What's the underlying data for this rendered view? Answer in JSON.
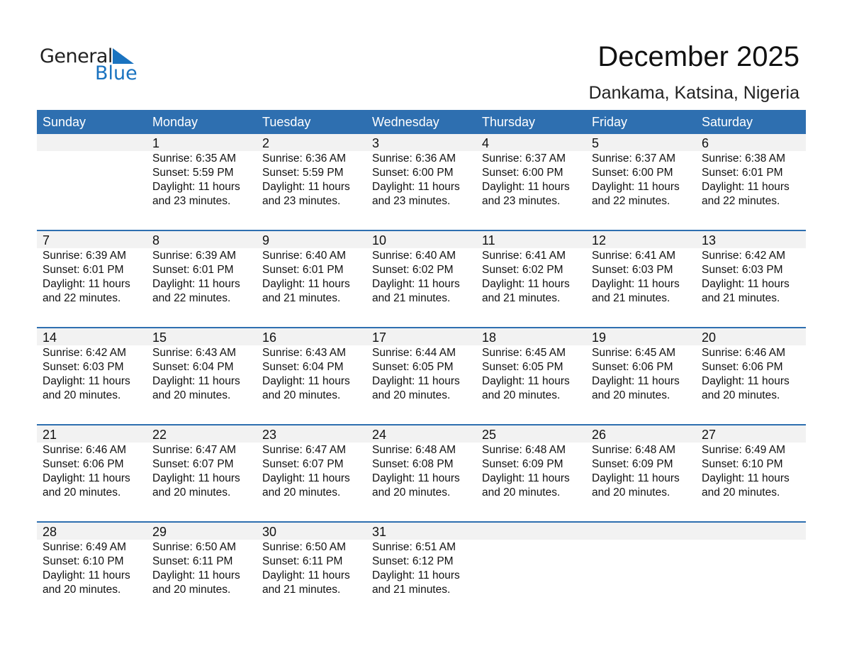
{
  "logo": {
    "word1": "General",
    "word2": "Blue",
    "brand_color": "#1a73c0"
  },
  "title": "December 2025",
  "location": "Dankama, Katsina, Nigeria",
  "header_color": "#2e6fb0",
  "weekdays": [
    "Sunday",
    "Monday",
    "Tuesday",
    "Wednesday",
    "Thursday",
    "Friday",
    "Saturday"
  ],
  "weeks": [
    [
      null,
      {
        "day": "1",
        "sunrise": "Sunrise: 6:35 AM",
        "sunset": "Sunset: 5:59 PM",
        "daylight1": "Daylight: 11 hours",
        "daylight2": "and 23 minutes."
      },
      {
        "day": "2",
        "sunrise": "Sunrise: 6:36 AM",
        "sunset": "Sunset: 5:59 PM",
        "daylight1": "Daylight: 11 hours",
        "daylight2": "and 23 minutes."
      },
      {
        "day": "3",
        "sunrise": "Sunrise: 6:36 AM",
        "sunset": "Sunset: 6:00 PM",
        "daylight1": "Daylight: 11 hours",
        "daylight2": "and 23 minutes."
      },
      {
        "day": "4",
        "sunrise": "Sunrise: 6:37 AM",
        "sunset": "Sunset: 6:00 PM",
        "daylight1": "Daylight: 11 hours",
        "daylight2": "and 23 minutes."
      },
      {
        "day": "5",
        "sunrise": "Sunrise: 6:37 AM",
        "sunset": "Sunset: 6:00 PM",
        "daylight1": "Daylight: 11 hours",
        "daylight2": "and 22 minutes."
      },
      {
        "day": "6",
        "sunrise": "Sunrise: 6:38 AM",
        "sunset": "Sunset: 6:01 PM",
        "daylight1": "Daylight: 11 hours",
        "daylight2": "and 22 minutes."
      }
    ],
    [
      {
        "day": "7",
        "sunrise": "Sunrise: 6:39 AM",
        "sunset": "Sunset: 6:01 PM",
        "daylight1": "Daylight: 11 hours",
        "daylight2": "and 22 minutes."
      },
      {
        "day": "8",
        "sunrise": "Sunrise: 6:39 AM",
        "sunset": "Sunset: 6:01 PM",
        "daylight1": "Daylight: 11 hours",
        "daylight2": "and 22 minutes."
      },
      {
        "day": "9",
        "sunrise": "Sunrise: 6:40 AM",
        "sunset": "Sunset: 6:01 PM",
        "daylight1": "Daylight: 11 hours",
        "daylight2": "and 21 minutes."
      },
      {
        "day": "10",
        "sunrise": "Sunrise: 6:40 AM",
        "sunset": "Sunset: 6:02 PM",
        "daylight1": "Daylight: 11 hours",
        "daylight2": "and 21 minutes."
      },
      {
        "day": "11",
        "sunrise": "Sunrise: 6:41 AM",
        "sunset": "Sunset: 6:02 PM",
        "daylight1": "Daylight: 11 hours",
        "daylight2": "and 21 minutes."
      },
      {
        "day": "12",
        "sunrise": "Sunrise: 6:41 AM",
        "sunset": "Sunset: 6:03 PM",
        "daylight1": "Daylight: 11 hours",
        "daylight2": "and 21 minutes."
      },
      {
        "day": "13",
        "sunrise": "Sunrise: 6:42 AM",
        "sunset": "Sunset: 6:03 PM",
        "daylight1": "Daylight: 11 hours",
        "daylight2": "and 21 minutes."
      }
    ],
    [
      {
        "day": "14",
        "sunrise": "Sunrise: 6:42 AM",
        "sunset": "Sunset: 6:03 PM",
        "daylight1": "Daylight: 11 hours",
        "daylight2": "and 20 minutes."
      },
      {
        "day": "15",
        "sunrise": "Sunrise: 6:43 AM",
        "sunset": "Sunset: 6:04 PM",
        "daylight1": "Daylight: 11 hours",
        "daylight2": "and 20 minutes."
      },
      {
        "day": "16",
        "sunrise": "Sunrise: 6:43 AM",
        "sunset": "Sunset: 6:04 PM",
        "daylight1": "Daylight: 11 hours",
        "daylight2": "and 20 minutes."
      },
      {
        "day": "17",
        "sunrise": "Sunrise: 6:44 AM",
        "sunset": "Sunset: 6:05 PM",
        "daylight1": "Daylight: 11 hours",
        "daylight2": "and 20 minutes."
      },
      {
        "day": "18",
        "sunrise": "Sunrise: 6:45 AM",
        "sunset": "Sunset: 6:05 PM",
        "daylight1": "Daylight: 11 hours",
        "daylight2": "and 20 minutes."
      },
      {
        "day": "19",
        "sunrise": "Sunrise: 6:45 AM",
        "sunset": "Sunset: 6:06 PM",
        "daylight1": "Daylight: 11 hours",
        "daylight2": "and 20 minutes."
      },
      {
        "day": "20",
        "sunrise": "Sunrise: 6:46 AM",
        "sunset": "Sunset: 6:06 PM",
        "daylight1": "Daylight: 11 hours",
        "daylight2": "and 20 minutes."
      }
    ],
    [
      {
        "day": "21",
        "sunrise": "Sunrise: 6:46 AM",
        "sunset": "Sunset: 6:06 PM",
        "daylight1": "Daylight: 11 hours",
        "daylight2": "and 20 minutes."
      },
      {
        "day": "22",
        "sunrise": "Sunrise: 6:47 AM",
        "sunset": "Sunset: 6:07 PM",
        "daylight1": "Daylight: 11 hours",
        "daylight2": "and 20 minutes."
      },
      {
        "day": "23",
        "sunrise": "Sunrise: 6:47 AM",
        "sunset": "Sunset: 6:07 PM",
        "daylight1": "Daylight: 11 hours",
        "daylight2": "and 20 minutes."
      },
      {
        "day": "24",
        "sunrise": "Sunrise: 6:48 AM",
        "sunset": "Sunset: 6:08 PM",
        "daylight1": "Daylight: 11 hours",
        "daylight2": "and 20 minutes."
      },
      {
        "day": "25",
        "sunrise": "Sunrise: 6:48 AM",
        "sunset": "Sunset: 6:09 PM",
        "daylight1": "Daylight: 11 hours",
        "daylight2": "and 20 minutes."
      },
      {
        "day": "26",
        "sunrise": "Sunrise: 6:48 AM",
        "sunset": "Sunset: 6:09 PM",
        "daylight1": "Daylight: 11 hours",
        "daylight2": "and 20 minutes."
      },
      {
        "day": "27",
        "sunrise": "Sunrise: 6:49 AM",
        "sunset": "Sunset: 6:10 PM",
        "daylight1": "Daylight: 11 hours",
        "daylight2": "and 20 minutes."
      }
    ],
    [
      {
        "day": "28",
        "sunrise": "Sunrise: 6:49 AM",
        "sunset": "Sunset: 6:10 PM",
        "daylight1": "Daylight: 11 hours",
        "daylight2": "and 20 minutes."
      },
      {
        "day": "29",
        "sunrise": "Sunrise: 6:50 AM",
        "sunset": "Sunset: 6:11 PM",
        "daylight1": "Daylight: 11 hours",
        "daylight2": "and 20 minutes."
      },
      {
        "day": "30",
        "sunrise": "Sunrise: 6:50 AM",
        "sunset": "Sunset: 6:11 PM",
        "daylight1": "Daylight: 11 hours",
        "daylight2": "and 21 minutes."
      },
      {
        "day": "31",
        "sunrise": "Sunrise: 6:51 AM",
        "sunset": "Sunset: 6:12 PM",
        "daylight1": "Daylight: 11 hours",
        "daylight2": "and 21 minutes."
      },
      null,
      null,
      null
    ]
  ]
}
